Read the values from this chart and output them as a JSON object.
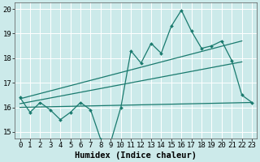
{
  "title": "",
  "xlabel": "Humidex (Indice chaleur)",
  "bg_color": "#cceaea",
  "line_color": "#1a7a6e",
  "grid_color": "#ffffff",
  "xlim": [
    -0.5,
    23.5
  ],
  "ylim": [
    14.75,
    20.25
  ],
  "yticks": [
    15,
    16,
    17,
    18,
    19,
    20
  ],
  "xticks": [
    0,
    1,
    2,
    3,
    4,
    5,
    6,
    7,
    8,
    9,
    10,
    11,
    12,
    13,
    14,
    15,
    16,
    17,
    18,
    19,
    20,
    21,
    22,
    23
  ],
  "main_data": [
    16.4,
    15.8,
    16.2,
    15.9,
    15.5,
    15.8,
    16.2,
    15.9,
    14.7,
    14.6,
    16.0,
    18.3,
    17.8,
    18.6,
    18.2,
    19.3,
    19.95,
    19.1,
    18.4,
    18.5,
    18.7,
    17.9,
    16.5,
    16.2
  ],
  "flat_line_x": [
    0,
    23
  ],
  "flat_line_y": [
    16.0,
    16.2
  ],
  "trend1_x": [
    0,
    22
  ],
  "trend1_y": [
    16.35,
    18.7
  ],
  "trend2_x": [
    0,
    22
  ],
  "trend2_y": [
    16.15,
    17.85
  ],
  "xlabel_fontsize": 7.5,
  "tick_fontsize": 6.5
}
